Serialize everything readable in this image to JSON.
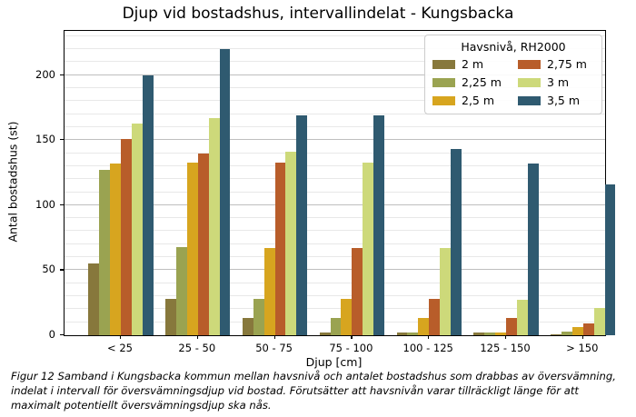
{
  "title": "Djup vid bostadshus, intervallindelat - Kungsbacka",
  "axes": {
    "x_label": "Djup [cm]",
    "y_label": "Antal bostadshus (st)",
    "y_ticks": [
      0,
      50,
      100,
      150,
      200
    ]
  },
  "legend": {
    "title": "Havsnivå, RH2000"
  },
  "caption_lines": [
    "Figur 12 Samband i Kungsbacka kommun mellan havsnivå och antalet bostadshus som drabbas av översvämning,",
    "indelat i intervall för översvämningsdjup vid bostad. Förutsätter att havsnivån varar tillräckligt länge för att",
    "maximalt potentiellt översvämningsdjup ska nås."
  ],
  "chart_data": {
    "type": "bar",
    "title": "Djup vid bostadshus, intervallindelat - Kungsbacka",
    "xlabel": "Djup [cm]",
    "ylabel": "Antal bostadshus (st)",
    "categories": [
      "< 25",
      "25 - 50",
      "50 - 75",
      "75 - 100",
      "100 - 125",
      "125 - 150",
      "> 150"
    ],
    "series": [
      {
        "name": "2 m",
        "color": "#87783c",
        "values": [
          55,
          28,
          13,
          2,
          2,
          2,
          1
        ]
      },
      {
        "name": "2,25 m",
        "color": "#9aa351",
        "values": [
          127,
          68,
          28,
          13,
          2,
          2,
          3
        ]
      },
      {
        "name": "2,5 m",
        "color": "#d7a51f",
        "values": [
          132,
          133,
          67,
          28,
          13,
          2,
          6
        ]
      },
      {
        "name": "2,75 m",
        "color": "#b85d2a",
        "values": [
          151,
          140,
          133,
          67,
          28,
          13,
          9
        ]
      },
      {
        "name": "3 m",
        "color": "#cdd97a",
        "values": [
          163,
          167,
          141,
          133,
          67,
          27,
          21
        ]
      },
      {
        "name": "3,5 m",
        "color": "#2f5a70",
        "values": [
          200,
          220,
          169,
          169,
          143,
          132,
          116
        ]
      }
    ],
    "ylim": [
      0,
      234
    ],
    "grid": "horizontal; minor every 10 (light), major every 50 (darker)",
    "legend_title": "Havsnivå, RH2000",
    "legend_position": "upper right, 2 columns"
  }
}
